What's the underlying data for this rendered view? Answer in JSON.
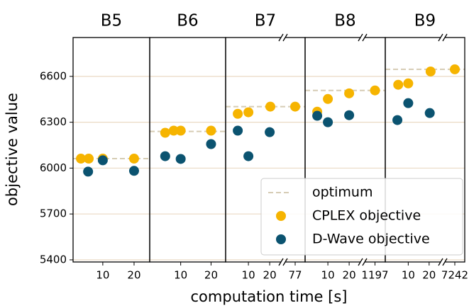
{
  "chart_data": {
    "type": "scatter",
    "xlabel": "computation time [s]",
    "ylabel": "objective value",
    "ylim": [
      5386,
      6854
    ],
    "yticks": [
      5400,
      5700,
      6000,
      6300,
      6600
    ],
    "grid": true,
    "legend_loc": "lower right",
    "series": [
      {
        "name": "optimum",
        "color": "#d6ccb4"
      },
      {
        "name": "CPLEX objective",
        "color": "#f6b400"
      },
      {
        "name": "D-Wave objective",
        "color": "#0b5370"
      }
    ],
    "panels": [
      {
        "title": "B5",
        "segments": [
          {
            "xlim": [
              0.5,
              25
            ],
            "xticks": [
              10,
              20
            ]
          }
        ],
        "optimum": 6062,
        "series": [
          {
            "x": [
              3,
              5.5,
              10,
              20
            ],
            "values": [
              6062,
              6062,
              6062,
              6062
            ]
          },
          {
            "x": [
              5.3,
              10,
              20
            ],
            "values": [
              5977,
              6051,
              5982
            ]
          }
        ]
      },
      {
        "title": "B6",
        "segments": [
          {
            "xlim": [
              -0.2,
              24.8
            ],
            "xticks": [
              10,
              20
            ]
          }
        ],
        "optimum": 6240,
        "series": [
          {
            "x": [
              4.9,
              7.7,
              10,
              20
            ],
            "values": [
              6231,
              6245,
              6245,
              6245
            ]
          },
          {
            "x": [
              4.9,
              10,
              20
            ],
            "values": [
              6078,
              6060,
              6157
            ]
          }
        ]
      },
      {
        "title": "B7",
        "segments": [
          {
            "xlim": [
              -0.7,
              25.3
            ],
            "xticks": [
              10,
              20
            ]
          },
          {
            "xlim": [
              72,
              82
            ],
            "xticks": [
              77
            ]
          }
        ],
        "optimum": 6402,
        "series": [
          {
            "x": [
              5,
              10,
              20.3,
              77
            ],
            "values": [
              6355,
              6365,
              6402,
              6402
            ]
          },
          {
            "x": [
              5,
              10,
              20
            ],
            "values": [
              6245,
              6078,
              6235
            ]
          }
        ]
      },
      {
        "title": "B8",
        "segments": [
          {
            "xlim": [
              -0.7,
              25.3
            ],
            "xticks": [
              10,
              20
            ]
          },
          {
            "xlim": [
              1192,
              1202
            ],
            "xticks": [
              1197
            ]
          }
        ],
        "optimum": 6508,
        "series": [
          {
            "x": [
              5,
              10,
              20,
              1197
            ],
            "values": [
              6369,
              6452,
              6489,
              6508
            ]
          },
          {
            "x": [
              5,
              10,
              20
            ],
            "values": [
              6342,
              6300,
              6346
            ]
          }
        ]
      },
      {
        "title": "B9",
        "segments": [
          {
            "xlim": [
              -1,
              25.5
            ],
            "xticks": [
              10,
              20
            ]
          },
          {
            "xlim": [
              7237,
              7247
            ],
            "xticks": [
              7242
            ]
          }
        ],
        "optimum": 6646,
        "series": [
          {
            "x": [
              5.2,
              10,
              20.7,
              7242
            ],
            "values": [
              6545,
              6554,
              6632,
              6646
            ]
          },
          {
            "x": [
              4.8,
              10,
              20.3
            ],
            "values": [
              6314,
              6425,
              6360
            ]
          }
        ]
      }
    ]
  }
}
